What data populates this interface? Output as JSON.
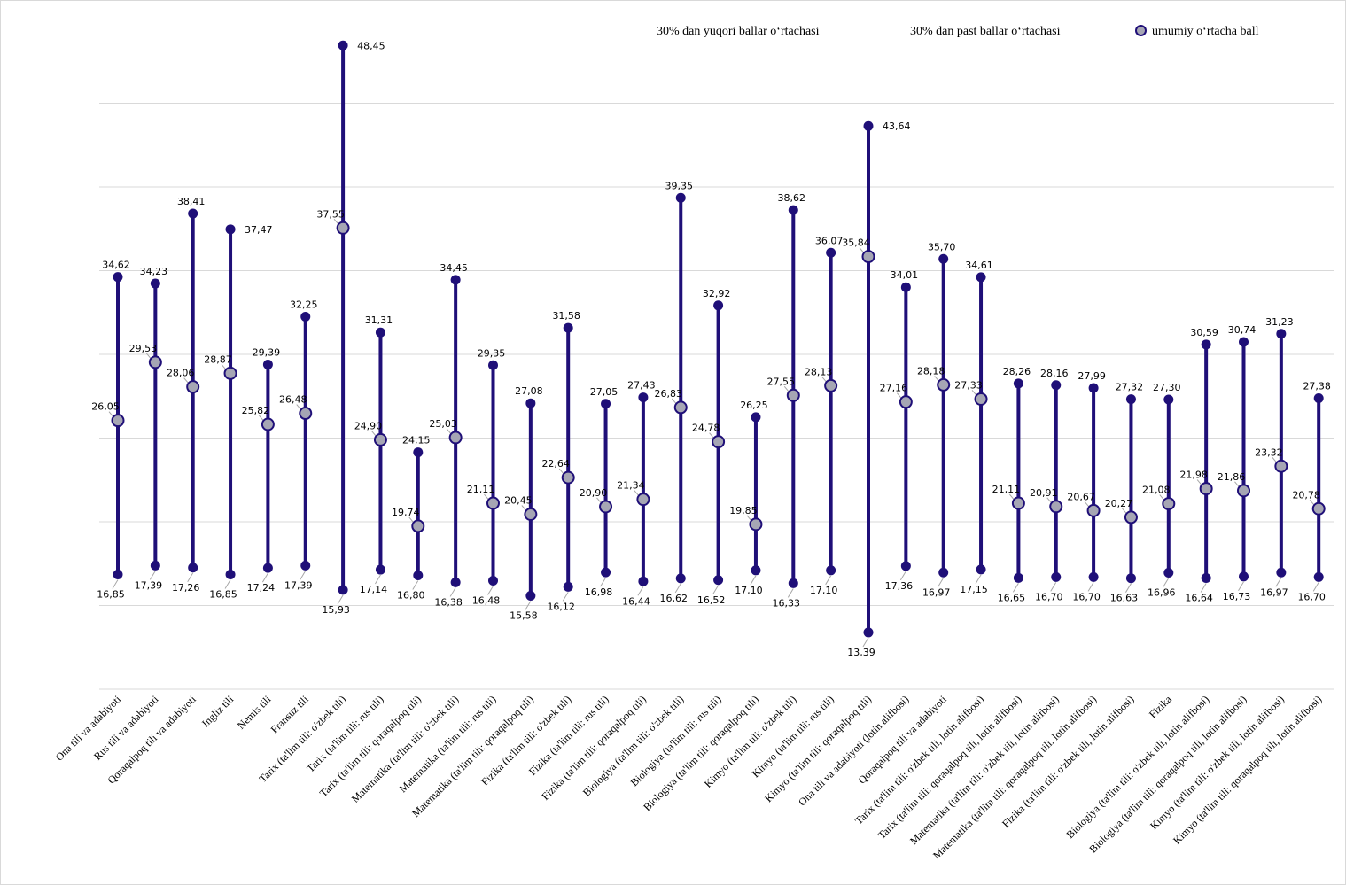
{
  "legend": {
    "high": "30% dan yuqori ballar o‘rtachasi",
    "low": "30% dan past ballar o‘rtachasi",
    "overall": "umumiy o‘rtacha ball"
  },
  "colors": {
    "line": "#1f0f78",
    "avg_fill": "#a6a6b4",
    "grid": "#d9d9d9",
    "leader": "#a6a6a6"
  },
  "chart_data": {
    "type": "line",
    "subtype": "high-low-average dot plot",
    "ylim": [
      10,
      50
    ],
    "grid": true,
    "legend_position": "top-right",
    "categories": [
      "Ona tili va adabiyoti",
      "Rus tili va adabiyoti",
      "Qoraqalpoq tili va adabiyoti",
      "Ingliz tili",
      "Nemis tili",
      "Fransuz tili",
      "Tarix (ta'lim tili: o'zbek tili)",
      "Tarix (ta'lim tili: rus tili)",
      "Tarix (ta'lim tili: qoraqalpoq tili)",
      "Matematika (ta'lim tili: o'zbek tili)",
      "Matematika (ta'lim tili: rus tili)",
      "Matematika (ta'lim tili: qoraqalpoq tili)",
      "Fizika (ta'lim tili: o'zbek tili)",
      "Fizika (ta'lim tili: rus tili)",
      "Fizika (ta'lim tili: qoraqalpoq tili)",
      "Biologiya (ta'lim tili: o'zbek tili)",
      "Biologiya (ta'lim tili: rus tili)",
      "Biologiya (ta'lim tili: qoraqalpoq tili)",
      "Kimyo (ta'lim tili: o'zbek tili)",
      "Kimyo (ta'lim tili: rus tili)",
      "Kimyo (ta'lim tili: qoraqalpoq tili)",
      "Ona tili va adabiyoti (lotin alifbosi)",
      "Qoraqalpoq tili va adabiyoti",
      "Tarix (ta'lim tili: o'zbek tili, lotin alifbosi)",
      "Tarix (ta'lim tili: qoraqalpoq tili, lotin alifbosi)",
      "Matematika (ta'lim tili: o'zbek tili, lotin alifbosi)",
      "Matematika (ta'lim tili: qoraqalpoq tili, lotin alifbosi)",
      "Fizika (ta'lim tili: o'zbek tili, lotin alifbosi)",
      "Fizika",
      "Biologiya (ta'lim tili: o'zbek tili, lotin alifbosi)",
      "Biologiya (ta'lim tili: qoraqalpoq tili, lotin alifbosi)",
      "Kimyo (ta'lim tili: o'zbek tili, lotin alifbosi)",
      "Kimyo (ta'lim tili: qoraqalpoq tili, lotin alifbosi)"
    ],
    "series": [
      {
        "name": "30% dan yuqori ballar o‘rtachasi",
        "values": [
          34.62,
          34.23,
          38.41,
          37.47,
          29.39,
          32.25,
          48.45,
          31.31,
          24.15,
          34.45,
          29.35,
          27.08,
          31.58,
          27.05,
          27.43,
          39.35,
          32.92,
          26.25,
          38.62,
          36.07,
          43.64,
          34.01,
          35.7,
          34.61,
          28.26,
          28.16,
          27.99,
          27.32,
          27.3,
          30.59,
          30.74,
          31.23,
          27.38
        ],
        "labels": [
          "34,62",
          "34,23",
          "38,41",
          "37,47",
          "29,39",
          "32,25",
          "48,45",
          "31,31",
          "24,15",
          "34,45",
          "29,35",
          "27,08",
          "31,58",
          "27,05",
          "27,43",
          "39,35",
          "32,92",
          "26,25",
          "38,62",
          "36,07",
          "43,64",
          "34,01",
          "35,70",
          "34,61",
          "28,26",
          "28,16",
          "27,99",
          "27,32",
          "27,30",
          "30,59",
          "30,74",
          "31,23",
          "27,38"
        ]
      },
      {
        "name": "30% dan past ballar o‘rtachasi",
        "values": [
          16.85,
          17.39,
          17.26,
          16.85,
          17.24,
          17.39,
          15.93,
          17.14,
          16.8,
          16.38,
          16.48,
          15.58,
          16.12,
          16.98,
          16.44,
          16.62,
          16.52,
          17.1,
          16.33,
          17.1,
          13.39,
          17.36,
          16.97,
          17.15,
          16.65,
          16.7,
          16.7,
          16.63,
          16.96,
          16.64,
          16.73,
          16.97,
          16.7
        ],
        "labels": [
          "16,85",
          "17,39",
          "17,26",
          "16,85",
          "17,24",
          "17,39",
          "15,93",
          "17,14",
          "16,80",
          "16,38",
          "16,48",
          "15,58",
          "16,12",
          "16,98",
          "16,44",
          "16,62",
          "16,52",
          "17,10",
          "16,33",
          "17,10",
          "13,39",
          "17,36",
          "16,97",
          "17,15",
          "16,65",
          "16,70",
          "16,70",
          "16,63",
          "16,96",
          "16,64",
          "16,73",
          "16,97",
          "16,70"
        ]
      },
      {
        "name": "umumiy o‘rtacha ball",
        "values": [
          26.05,
          29.53,
          28.06,
          28.87,
          25.82,
          26.48,
          37.55,
          24.9,
          19.74,
          25.03,
          21.11,
          20.45,
          22.64,
          20.9,
          21.34,
          26.83,
          24.78,
          19.85,
          27.55,
          28.13,
          35.84,
          27.16,
          28.18,
          27.33,
          21.11,
          20.91,
          20.67,
          20.27,
          21.08,
          21.98,
          21.86,
          23.32,
          20.78
        ],
        "labels": [
          "26,05",
          "29,53",
          "28,06",
          "28,87",
          "25,82",
          "26,48",
          "37,55",
          "24,90",
          "19,74",
          "25,03",
          "21,11",
          "20,45",
          "22,64",
          "20,90",
          "21,34",
          "26,83",
          "24,78",
          "19,85",
          "27,55",
          "28,13",
          "35,84",
          "27,16",
          "28,18",
          "27,33",
          "21,11",
          "20,91",
          "20,67",
          "20,27",
          "21,08",
          "21,98",
          "21,86",
          "23,32",
          "20,78"
        ]
      }
    ]
  }
}
